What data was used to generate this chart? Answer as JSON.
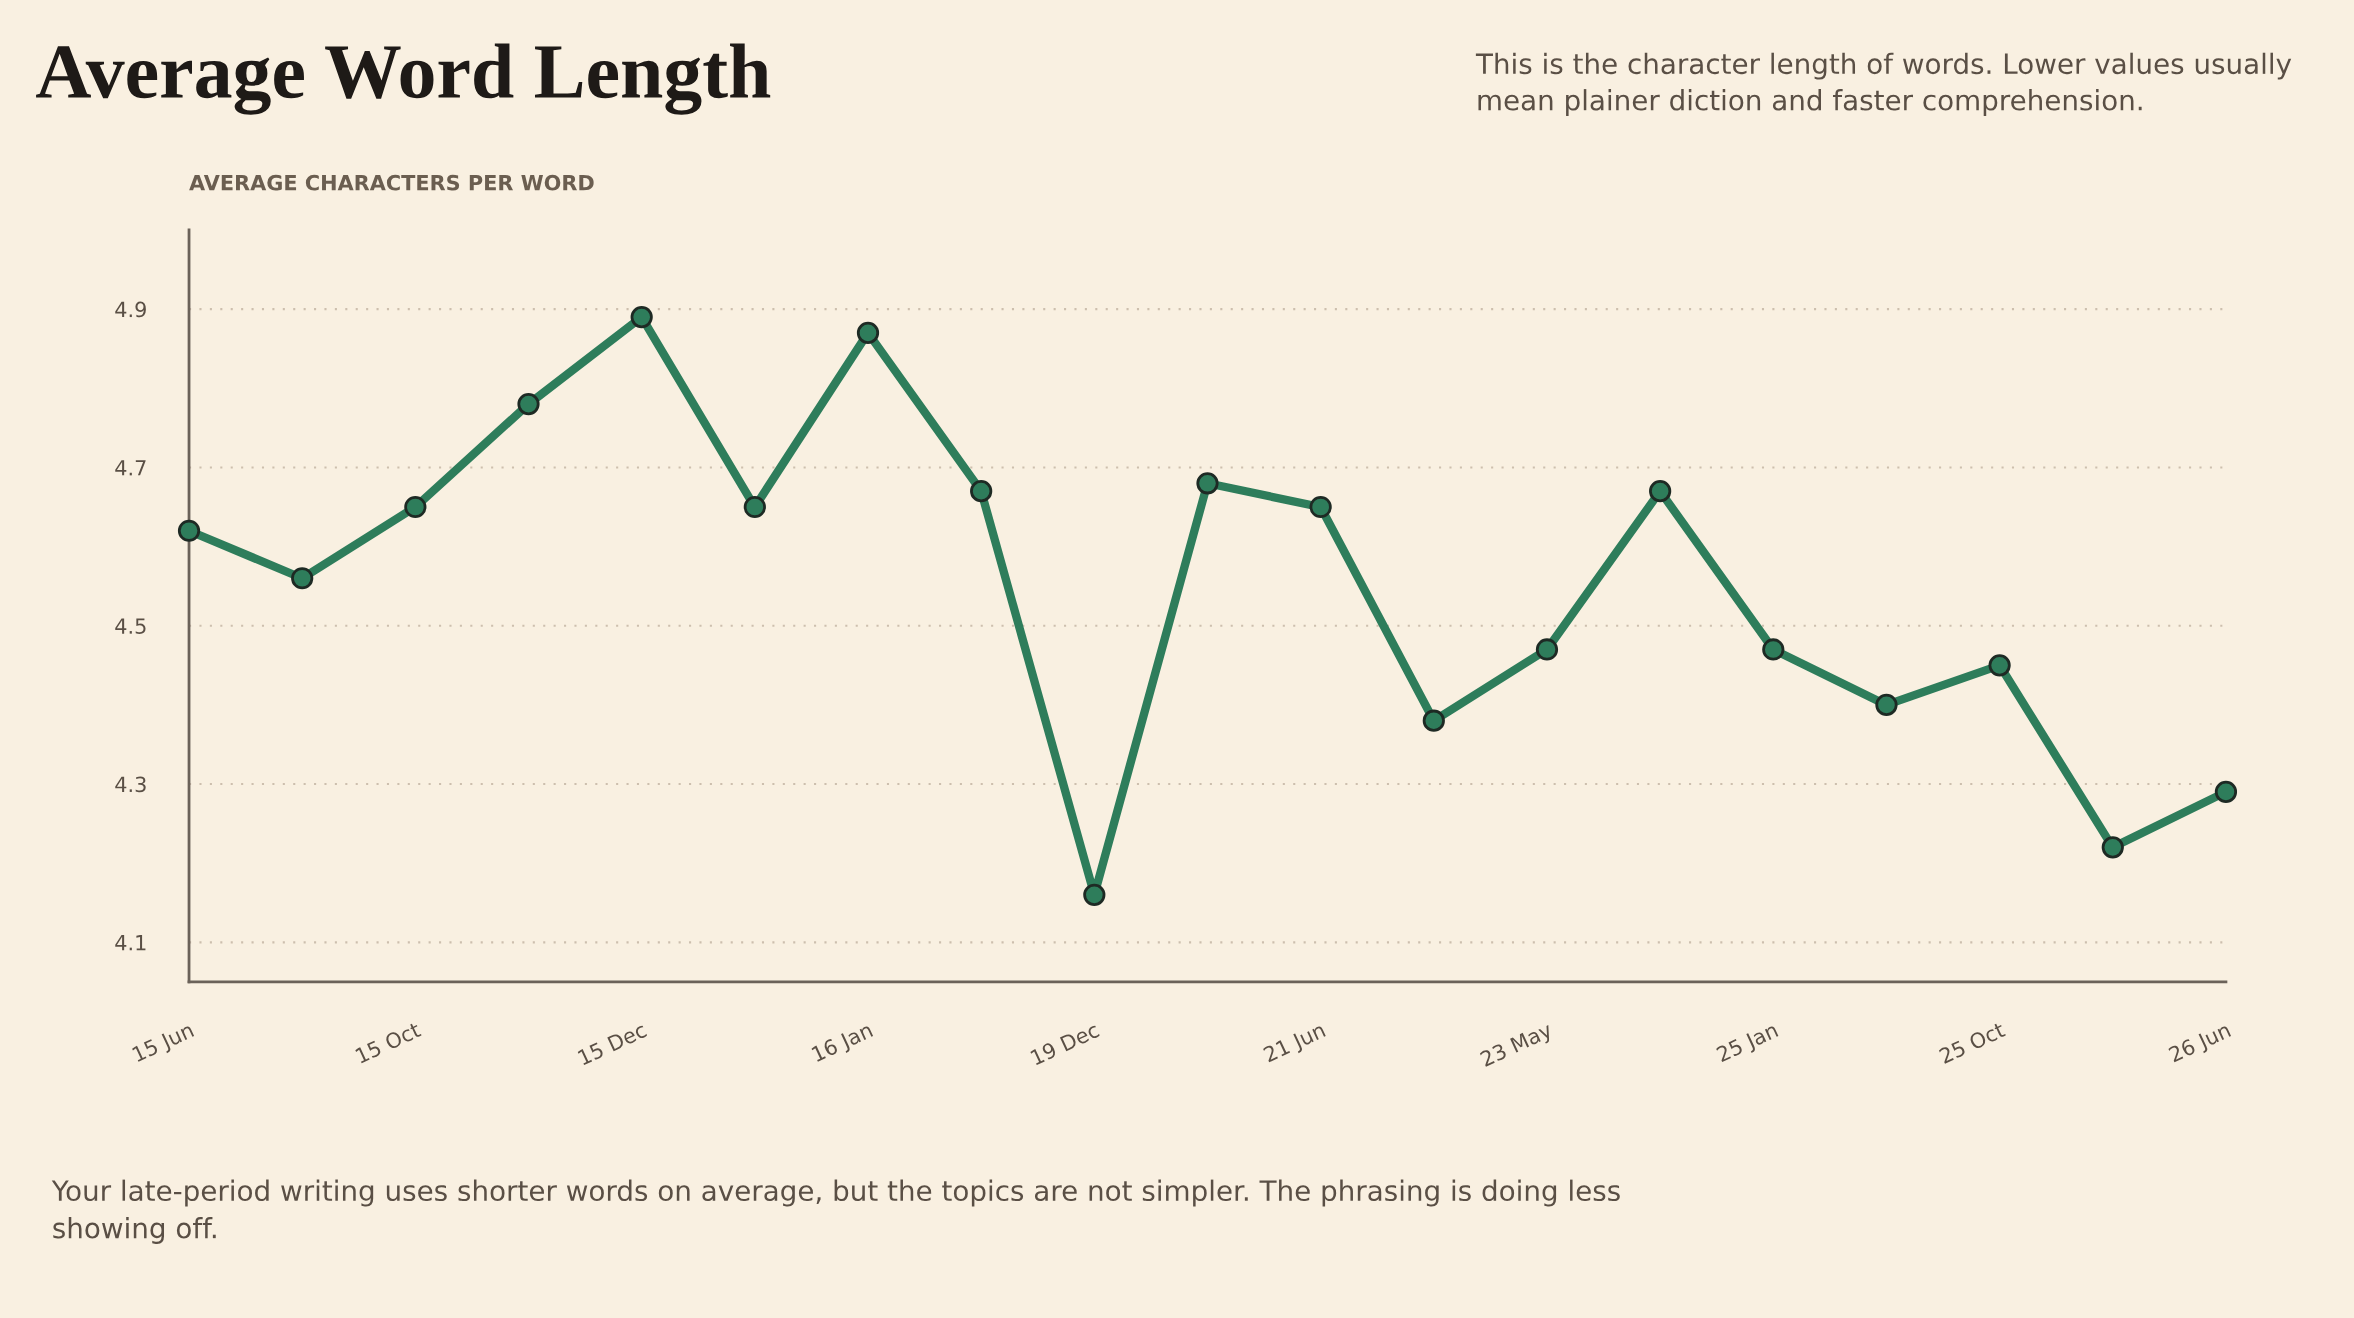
{
  "chart_data": {
    "type": "line",
    "title": "Average Word Length",
    "subtitle": "This is the character length of words. Lower values usually mean plainer diction and faster comprehension.",
    "ylabel": "AVERAGE CHARACTERS PER WORD",
    "annotations": [
      "Your late-period writing uses shorter words on average, but the topics are not simpler. The phrasing is doing less showing off."
    ],
    "categories": [
      "15 Jun",
      null,
      "15 Oct",
      null,
      "15 Dec",
      null,
      "16 Jan",
      null,
      "19 Dec",
      null,
      "21 Jun",
      null,
      "23 May",
      null,
      "25 Jan",
      null,
      "25 Oct",
      null,
      "26 Jun"
    ],
    "series": [
      {
        "color": "#2e7d5b",
        "values": [
          4.62,
          4.56,
          4.65,
          4.78,
          4.89,
          4.65,
          4.87,
          4.67,
          4.16,
          4.68,
          4.65,
          4.38,
          4.47,
          4.67,
          4.47,
          4.4,
          4.45,
          4.22,
          4.29
        ]
      }
    ],
    "ylim": [
      4.05,
      5.0
    ],
    "yticks": [
      4.1,
      4.3,
      4.5,
      4.7,
      4.9
    ],
    "grid": "y",
    "marker": "circle",
    "line_style": "solid"
  }
}
